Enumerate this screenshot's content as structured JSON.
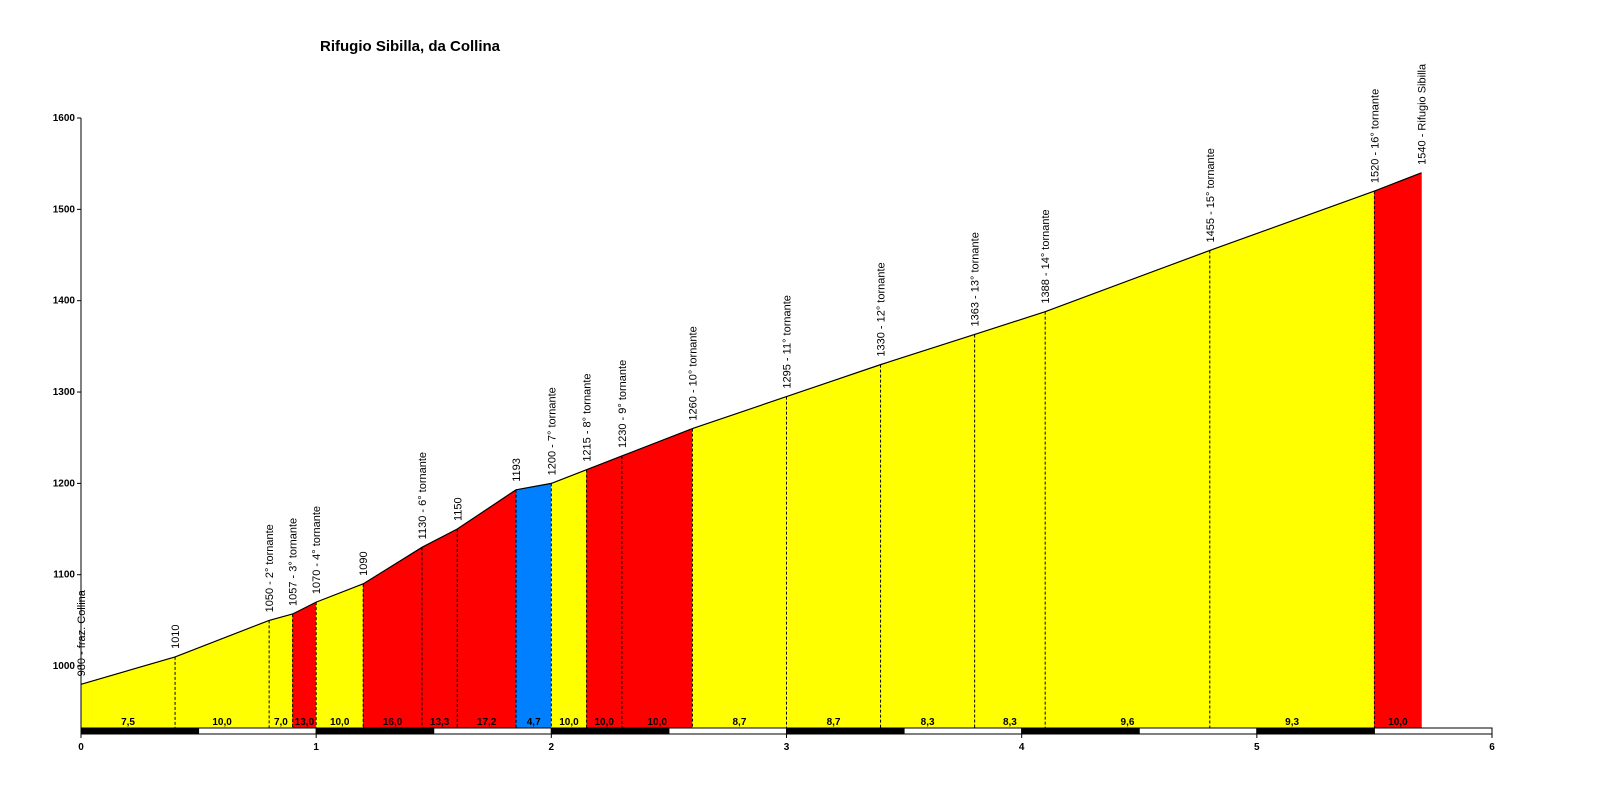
{
  "chart_data": {
    "type": "area",
    "title": "Rifugio Sibilla, da Collina",
    "xlabel": "",
    "ylabel": "",
    "xlim": [
      0,
      6
    ],
    "ylim": [
      930,
      1600
    ],
    "x_ticks": [
      "0",
      "1",
      "2",
      "3",
      "4",
      "5",
      "6"
    ],
    "y_ticks": [
      "1000",
      "1100",
      "1200",
      "1300",
      "1400",
      "1500",
      "1600"
    ],
    "grid": false,
    "legend": "none",
    "colors": {
      "low": "#ffff00",
      "high": "#ff0000",
      "descent": "#0080ff"
    },
    "profile": [
      {
        "x": 0.0,
        "y": 980,
        "label": "980 - fraz. Collina"
      },
      {
        "x": 0.4,
        "y": 1010,
        "label": "1010"
      },
      {
        "x": 0.8,
        "y": 1050,
        "label": "1050 - 2° tornante"
      },
      {
        "x": 0.9,
        "y": 1057,
        "label": "1057 - 3° tornante"
      },
      {
        "x": 1.0,
        "y": 1070,
        "label": "1070 - 4° tornante"
      },
      {
        "x": 1.2,
        "y": 1090,
        "label": "1090"
      },
      {
        "x": 1.45,
        "y": 1130,
        "label": "1130 - 6° tornante"
      },
      {
        "x": 1.6,
        "y": 1150,
        "label": "1150"
      },
      {
        "x": 1.85,
        "y": 1193,
        "label": "1193"
      },
      {
        "x": 2.0,
        "y": 1200,
        "label": "1200 - 7° tornante"
      },
      {
        "x": 2.15,
        "y": 1215,
        "label": "1215 - 8° tornante"
      },
      {
        "x": 2.3,
        "y": 1230,
        "label": "1230 - 9° tornante"
      },
      {
        "x": 2.6,
        "y": 1260,
        "label": "1260 - 10° tornante"
      },
      {
        "x": 3.0,
        "y": 1295,
        "label": "1295 - 11° tornante"
      },
      {
        "x": 3.4,
        "y": 1330,
        "label": "1330 - 12° tornante"
      },
      {
        "x": 3.8,
        "y": 1363,
        "label": "1363 - 13° tornante"
      },
      {
        "x": 4.1,
        "y": 1388,
        "label": "1388 - 14° tornante"
      },
      {
        "x": 4.8,
        "y": 1455,
        "label": "1455 - 15° tornante"
      },
      {
        "x": 5.5,
        "y": 1520,
        "label": "1520 - 16° tornante"
      },
      {
        "x": 5.7,
        "y": 1540,
        "label": "1540 - Rifugio Sibilla"
      }
    ],
    "segments": [
      {
        "gradient": "7,5",
        "level": "low"
      },
      {
        "gradient": "10,0",
        "level": "low"
      },
      {
        "gradient": "7,0",
        "level": "low"
      },
      {
        "gradient": "13,0",
        "level": "high"
      },
      {
        "gradient": "10,0",
        "level": "low"
      },
      {
        "gradient": "16,0",
        "level": "high"
      },
      {
        "gradient": "13,3",
        "level": "high"
      },
      {
        "gradient": "17,2",
        "level": "high"
      },
      {
        "gradient": "4,7",
        "level": "descent"
      },
      {
        "gradient": "10,0",
        "level": "low"
      },
      {
        "gradient": "10,0",
        "level": "high"
      },
      {
        "gradient": "10,0",
        "level": "high"
      },
      {
        "gradient": "8,7",
        "level": "low"
      },
      {
        "gradient": "8,7",
        "level": "low"
      },
      {
        "gradient": "8,3",
        "level": "low"
      },
      {
        "gradient": "8,3",
        "level": "low"
      },
      {
        "gradient": "9,6",
        "level": "low"
      },
      {
        "gradient": "9,3",
        "level": "low"
      },
      {
        "gradient": "10,0",
        "level": "high"
      }
    ]
  }
}
